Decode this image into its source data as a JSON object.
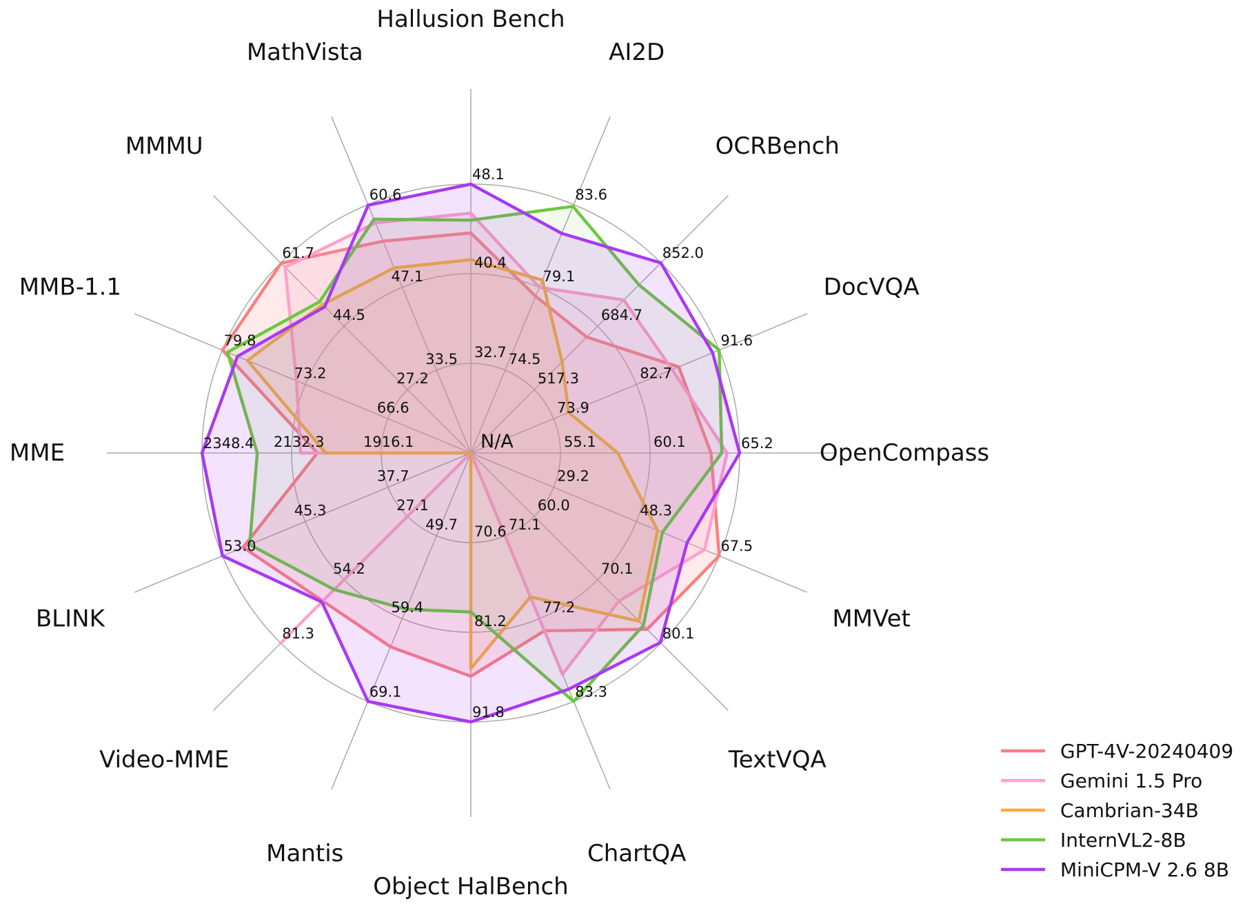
{
  "chart_data": {
    "type": "radar",
    "title": "",
    "center_label": "N/A",
    "grid": {
      "rings": 3,
      "ring_radii_norm": [
        0.3333,
        0.6667,
        1.0
      ],
      "color": "#a9a9a9",
      "spokes": 16
    },
    "legend_position": "bottom-right",
    "axes": [
      {
        "label": "Hallusion Bench",
        "ring_values": [
          32.7,
          40.4
        ],
        "ring_labels": [
          "32.7",
          "40.4"
        ],
        "outer_value": 48.1,
        "outer_label": "48.1"
      },
      {
        "label": "AI2D",
        "ring_values": [
          74.5,
          79.1
        ],
        "ring_labels": [
          "74.5",
          "79.1"
        ],
        "outer_value": 83.6,
        "outer_label": "83.6"
      },
      {
        "label": "OCRBench",
        "ring_values": [
          517.3,
          684.7
        ],
        "ring_labels": [
          "517.3",
          "684.7"
        ],
        "outer_value": 852.0,
        "outer_label": "852.0"
      },
      {
        "label": "DocVQA",
        "ring_values": [
          73.9,
          82.7
        ],
        "ring_labels": [
          "73.9",
          "82.7"
        ],
        "outer_value": 91.6,
        "outer_label": "91.6"
      },
      {
        "label": "OpenCompass",
        "ring_values": [
          55.1,
          60.1
        ],
        "ring_labels": [
          "55.1",
          "60.1"
        ],
        "outer_value": 65.2,
        "outer_label": "65.2"
      },
      {
        "label": "MMVet",
        "ring_values": [
          29.2,
          48.3
        ],
        "ring_labels": [
          "29.2",
          "48.3"
        ],
        "outer_value": 67.5,
        "outer_label": "67.5"
      },
      {
        "label": "TextVQA",
        "ring_values": [
          60.0,
          70.1
        ],
        "ring_labels": [
          "60.0",
          "70.1"
        ],
        "outer_value": 80.1,
        "outer_label": "80.1"
      },
      {
        "label": "ChartQA",
        "ring_values": [
          71.1,
          77.2
        ],
        "ring_labels": [
          "71.1",
          "77.2"
        ],
        "outer_value": 83.3,
        "outer_label": "83.3"
      },
      {
        "label": "Object HalBench",
        "ring_values": [
          70.6,
          81.2
        ],
        "ring_labels": [
          "70.6",
          "81.2"
        ],
        "outer_value": 91.8,
        "outer_label": "91.8"
      },
      {
        "label": "Mantis",
        "ring_values": [
          49.7,
          59.4
        ],
        "ring_labels": [
          "49.7",
          "59.4"
        ],
        "outer_value": 69.1,
        "outer_label": "69.1"
      },
      {
        "label": "Video-MME",
        "ring_values": [
          27.1,
          54.2
        ],
        "ring_labels": [
          "27.1",
          "54.2"
        ],
        "outer_value": 81.3,
        "outer_label": "81.3"
      },
      {
        "label": "BLINK",
        "ring_values": [
          37.7,
          45.3
        ],
        "ring_labels": [
          "37.7",
          "45.3"
        ],
        "outer_value": 53.0,
        "outer_label": "53.0"
      },
      {
        "label": "MME",
        "ring_values": [
          1916.1,
          2132.3
        ],
        "ring_labels": [
          "1916.1",
          "2132.3"
        ],
        "outer_value": 2348.4,
        "outer_label": "2348.4"
      },
      {
        "label": "MMB-1.1",
        "ring_values": [
          66.6,
          73.2
        ],
        "ring_labels": [
          "66.6",
          "73.2"
        ],
        "outer_value": 79.8,
        "outer_label": "79.8"
      },
      {
        "label": "MMMU",
        "ring_values": [
          27.2,
          44.5
        ],
        "ring_labels": [
          "27.2",
          "44.5"
        ],
        "outer_value": 61.7,
        "outer_label": "61.7"
      },
      {
        "label": "MathVista",
        "ring_values": [
          33.5,
          47.1
        ],
        "ring_labels": [
          "33.5",
          "47.1"
        ],
        "outer_value": 60.6,
        "outer_label": "60.6"
      }
    ],
    "series": [
      {
        "name": "GPT-4V-20240409",
        "color": "#FA8080",
        "fill": "rgba(250,128,128,0.17)",
        "values": [
          43.9,
          78.6,
          656.0,
          87.2,
          63.5,
          67.5,
          78.0,
          78.1,
          86.4,
          62.7,
          63.3,
          51.0,
          2070.2,
          79.8,
          61.7,
          54.7
        ]
      },
      {
        "name": "Gemini 1.5 Pro",
        "color": "#FFA1CB",
        "fill": "rgba(255,161,203,0.17)",
        "values": [
          45.6,
          79.1,
          754.0,
          86.5,
          64.4,
          64.0,
          73.5,
          81.3,
          null,
          null,
          81.3,
          null,
          2110.6,
          73.9,
          60.6,
          57.7
        ]
      },
      {
        "name": "Cambrian-34B",
        "color": "#F5AE3D",
        "fill": "rgba(245,174,61,0.10)",
        "values": [
          41.6,
          79.5,
          591.0,
          75.5,
          58.3,
          53.2,
          76.7,
          75.6,
          85.5,
          null,
          null,
          null,
          2049.9,
          77.8,
          50.4,
          50.3
        ]
      },
      {
        "name": "InternVL2-8B",
        "color": "#6BC83E",
        "fill": "rgba(107,200,62,0.09)",
        "values": [
          45.0,
          83.6,
          794.0,
          91.6,
          64.1,
          54.3,
          77.4,
          83.3,
          78.8,
          58.3,
          58.4,
          50.4,
          2215.1,
          79.4,
          51.2,
          58.3
        ]
      },
      {
        "name": "MiniCPM-V 2.6 8B",
        "color": "#A73AF1",
        "fill": "rgba(167,58,241,0.14)",
        "values": [
          48.1,
          82.1,
          852.0,
          90.8,
          65.2,
          60.0,
          80.1,
          82.4,
          91.8,
          69.1,
          63.7,
          53.0,
          2348.4,
          78.6,
          49.8,
          60.6
        ]
      }
    ]
  }
}
